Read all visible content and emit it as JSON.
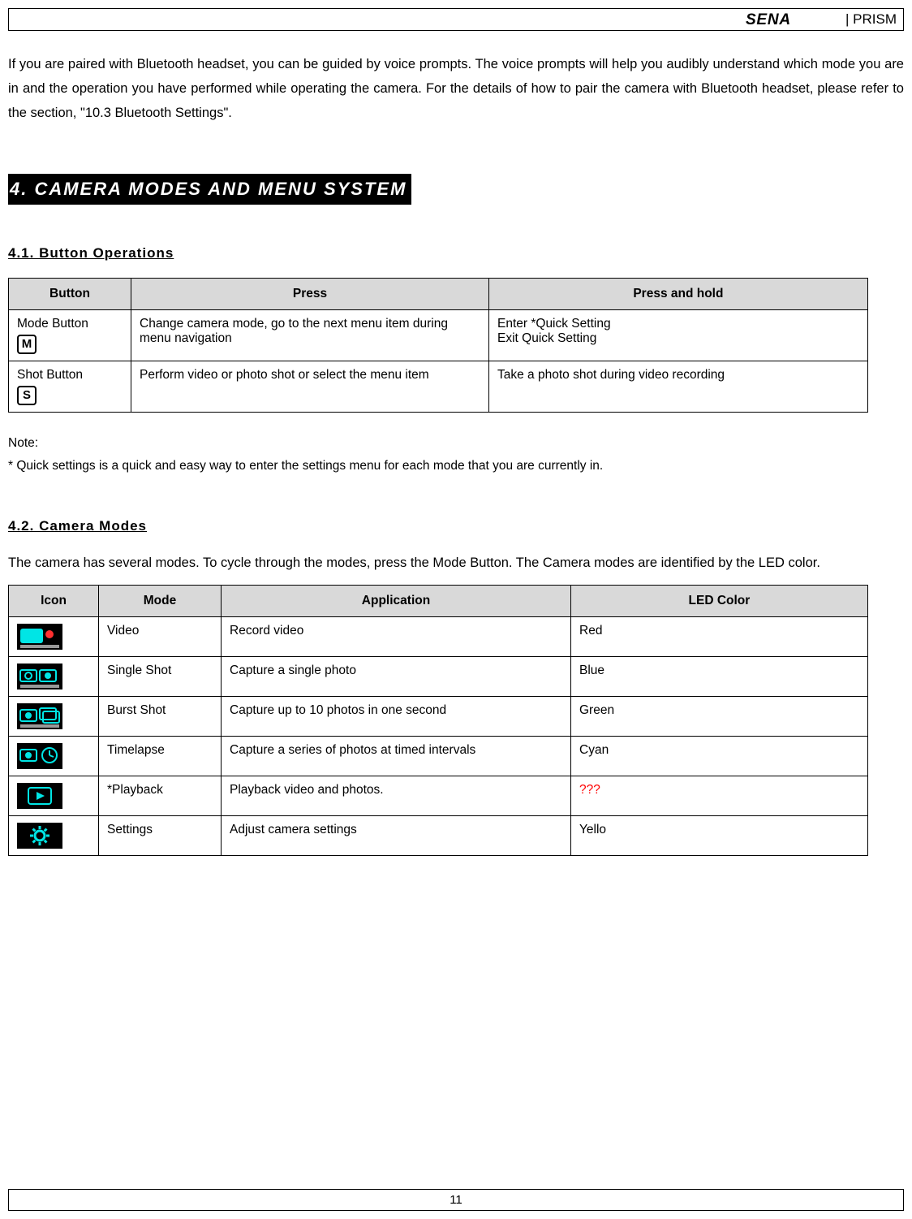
{
  "header": {
    "brand_text": "SENA",
    "product": "| PRISM"
  },
  "intro_paragraph": "If you are paired with Bluetooth headset, you can be guided by voice prompts. The voice prompts will help you audibly understand which mode you are in and the operation you have performed  while operating the camera. For the details of how to pair the camera with Bluetooth headset, please refer to the section, \"10.3 Bluetooth Settings\".",
  "section_title": "4. CAMERA MODES AND MENU SYSTEM",
  "sub_41": "4.1. Button Operations",
  "buttons_table": {
    "headers": [
      "Button",
      "Press",
      "Press and hold"
    ],
    "rows": [
      {
        "button_label": "Mode Button",
        "button_icon_letter": "M",
        "press": "Change camera mode, go to the next menu item during menu navigation",
        "hold": "Enter *Quick Setting\nExit Quick Setting"
      },
      {
        "button_label": "Shot Button",
        "button_icon_letter": "S",
        "press": "Perform video or photo shot or select the menu item",
        "hold": "Take a photo shot during video recording"
      }
    ]
  },
  "note_label": "Note:",
  "note_text": "* Quick settings is a quick and easy way to enter the settings menu for each mode that you are currently in.",
  "sub_42": "4.2. Camera Modes",
  "modes_paragraph": "The camera has several modes. To cycle through the modes, press the Mode Button. The Camera modes are identified by the LED color.",
  "modes_table": {
    "headers": [
      "Icon",
      "Mode",
      "Application",
      "LED Color"
    ],
    "rows": [
      {
        "mode": "Video",
        "application": "Record video",
        "led": "Red",
        "led_is_red": false,
        "icon_bg": "#000000",
        "icon_accent": "#00e5e5",
        "icon_type": "video"
      },
      {
        "mode": "Single Shot",
        "application": "Capture a single photo",
        "led": "Blue",
        "led_is_red": false,
        "icon_bg": "#000000",
        "icon_accent": "#00e5e5",
        "icon_type": "single"
      },
      {
        "mode": "Burst Shot",
        "application": "Capture up to 10 photos in one second",
        "led": "Green",
        "led_is_red": false,
        "icon_bg": "#000000",
        "icon_accent": "#00e5e5",
        "icon_type": "burst"
      },
      {
        "mode": "Timelapse",
        "application": "Capture a series of photos at timed intervals",
        "led": "Cyan",
        "led_is_red": false,
        "icon_bg": "#000000",
        "icon_accent": "#00e5e5",
        "icon_type": "timelapse"
      },
      {
        "mode": "*Playback",
        "application": "Playback video and photos.",
        "led": "???",
        "led_is_red": true,
        "icon_bg": "#000000",
        "icon_accent": "#00e5e5",
        "icon_type": "playback"
      },
      {
        "mode": "Settings",
        "application": "Adjust camera settings",
        "led": "Yello",
        "led_is_red": false,
        "icon_bg": "#000000",
        "icon_accent": "#00e5e5",
        "icon_type": "settings"
      }
    ]
  },
  "page_number": "11",
  "colors": {
    "header_bg": "#d9d9d9",
    "missing_led": "#ff0000",
    "icon_bg": "#000000",
    "icon_accent": "#00e5e5"
  }
}
